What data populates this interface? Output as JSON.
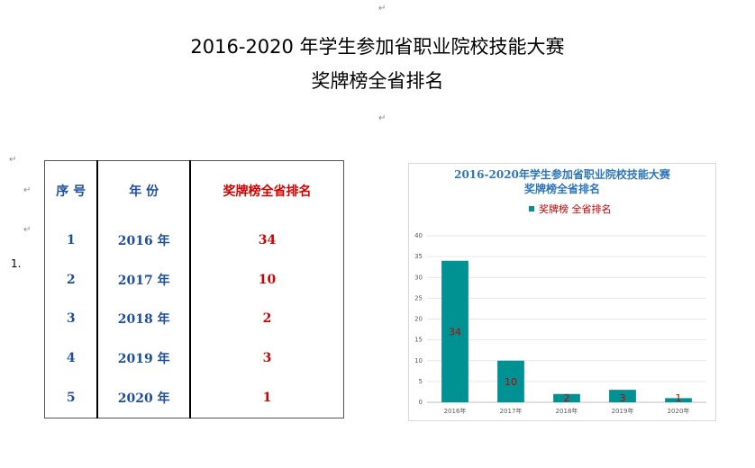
{
  "document": {
    "title_line1": "2016-2020 年学生参加省职业院校技能大赛",
    "title_line2": "奖牌榜全省排名",
    "list_marker": "1.",
    "paragraph_mark": "↵"
  },
  "table": {
    "headers": [
      "序 号",
      "年 份",
      "奖牌榜全省排名"
    ],
    "rows": [
      {
        "no": "1",
        "year": "2016 年",
        "rank": "34"
      },
      {
        "no": "2",
        "year": "2017 年",
        "rank": "10"
      },
      {
        "no": "3",
        "year": "2018 年",
        "rank": "2"
      },
      {
        "no": "4",
        "year": "2019 年",
        "rank": "3"
      },
      {
        "no": "5",
        "year": "2020 年",
        "rank": "1"
      }
    ]
  },
  "chart_data": {
    "type": "bar",
    "title": "2016-2020年学生参加省职业院校技能大赛",
    "subtitle": "奖牌榜全省排名",
    "legend": "奖牌榜 全省排名",
    "legend_placement": "top",
    "categories": [
      "2016年",
      "2017年",
      "2018年",
      "2019年",
      "2020年"
    ],
    "series": [
      {
        "name": "奖牌榜 全省排名",
        "values": [
          34,
          10,
          2,
          3,
          1
        ]
      }
    ],
    "ylim": [
      0,
      40
    ],
    "yticks": [
      0,
      5,
      10,
      15,
      20,
      25,
      30,
      35,
      40
    ],
    "grid": true,
    "bar_color": "#009193",
    "label_color": "#c00000"
  }
}
